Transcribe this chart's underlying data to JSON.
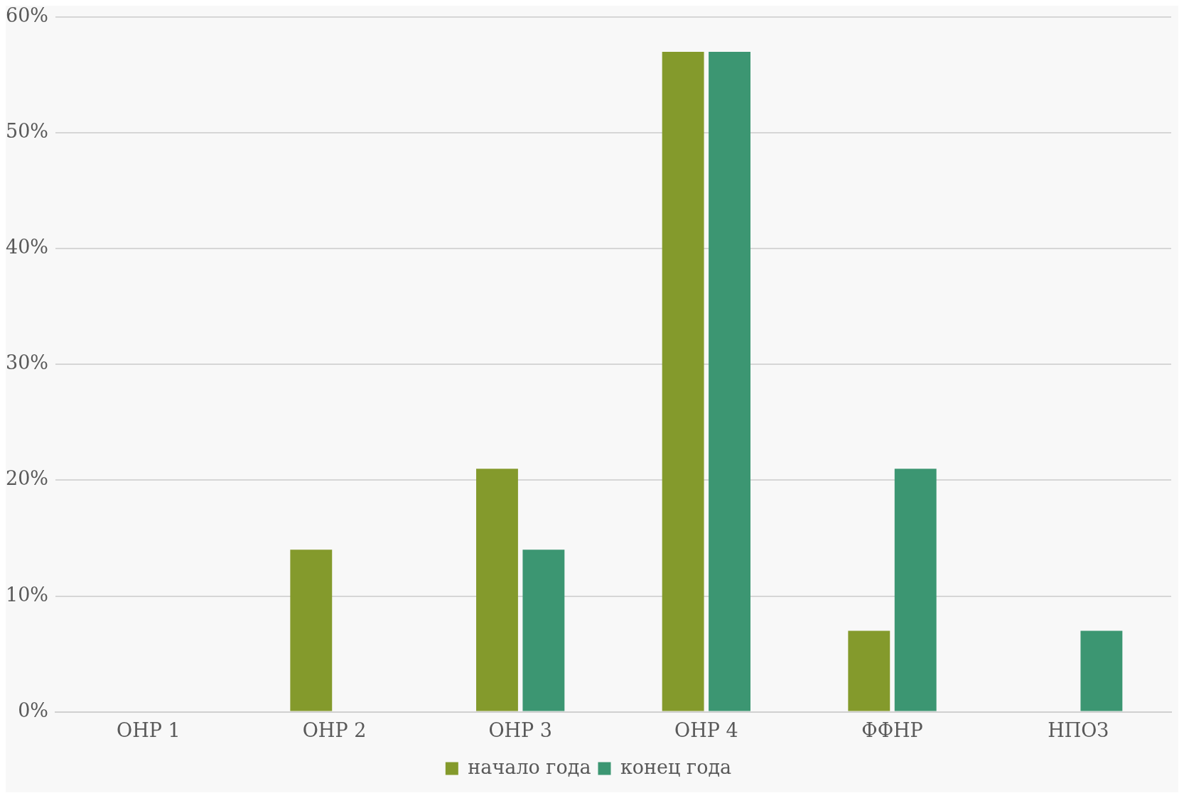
{
  "chart_data": {
    "type": "bar",
    "categories": [
      "ОНР 1",
      "ОНР 2",
      "ОНР 3",
      "ОНР 4",
      "ФФНР",
      "НПОЗ"
    ],
    "series": [
      {
        "name": "начало года",
        "color": "#849a2c",
        "values": [
          0,
          14,
          21,
          57,
          7,
          0
        ]
      },
      {
        "name": "конец года",
        "color": "#3c9672",
        "values": [
          0,
          0,
          14,
          57,
          21,
          7
        ]
      }
    ],
    "ylim": [
      0,
      60
    ],
    "yticks": [
      {
        "value": 0,
        "label": "0%"
      },
      {
        "value": 10,
        "label": "10%"
      },
      {
        "value": 20,
        "label": "20%"
      },
      {
        "value": 30,
        "label": "30%"
      },
      {
        "value": 40,
        "label": "40%"
      },
      {
        "value": 50,
        "label": "50%"
      },
      {
        "value": 60,
        "label": "60%"
      }
    ],
    "grid": "y",
    "legend": "bottom"
  }
}
